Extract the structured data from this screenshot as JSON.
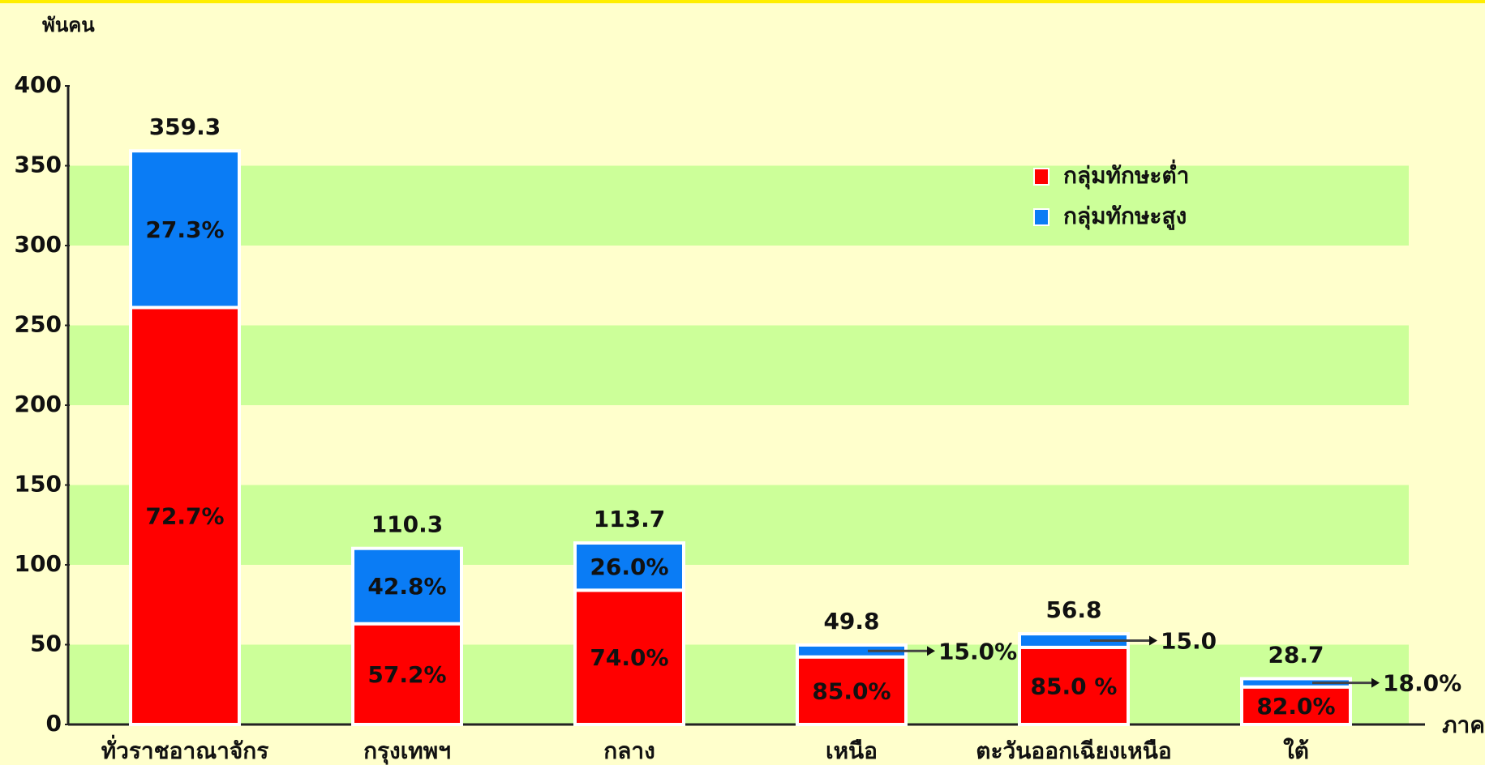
{
  "chart_data": {
    "type": "stacked_bar",
    "y_label": "พันคน",
    "x_label": "ภาค",
    "categories": [
      "ทั่วราชอาณาจักร",
      "กรุงเทพฯ",
      "กลาง",
      "เหนือ",
      "ตะวันออกเฉียงเหนือ",
      "ใต้"
    ],
    "totals": [
      359.3,
      110.3,
      113.7,
      49.8,
      56.8,
      28.7
    ],
    "series": [
      {
        "name": "กลุ่มทักษะต่ำ",
        "color": "#ff0000",
        "label_color": "#3a0000",
        "values": [
          261.2,
          63.1,
          84.1,
          42.3,
          48.3,
          23.5
        ],
        "shares": [
          72.7,
          57.2,
          74.0,
          85.0,
          85.0,
          82.0
        ],
        "share_labels": [
          "72.7%",
          "57.2%",
          "74.0%",
          "85.0%",
          "85.0 %",
          "82.0%"
        ]
      },
      {
        "name": "กลุ่มทักษะสูง",
        "color": "#0a7cf5",
        "label_color": "#ffffff",
        "values": [
          98.1,
          47.2,
          29.6,
          7.5,
          8.5,
          5.2
        ],
        "shares": [
          27.3,
          42.8,
          26.0,
          15.0,
          15.0,
          18.0
        ],
        "share_labels": [
          "27.3%",
          "42.8%",
          "26.0%",
          "15.0%",
          "15.0",
          "18.0%"
        ]
      }
    ],
    "ylim": [
      0,
      400
    ],
    "yticks": [
      0,
      50,
      100,
      150,
      200,
      250,
      300,
      350,
      400
    ],
    "grid": "bands",
    "band_color": "#ccff99",
    "background": "#ffffcc",
    "legend": "top-right"
  }
}
